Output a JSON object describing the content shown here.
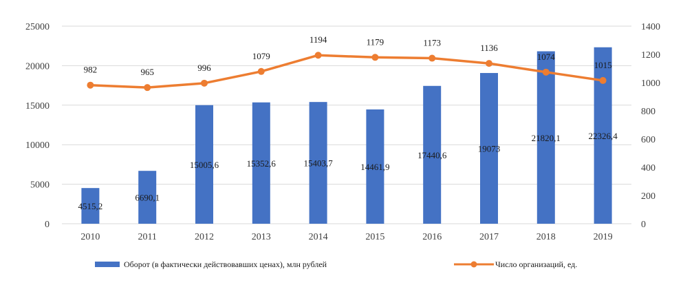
{
  "chart_data": {
    "type": "bar+line",
    "categories": [
      "2010",
      "2011",
      "2012",
      "2013",
      "2014",
      "2015",
      "2016",
      "2017",
      "2018",
      "2019"
    ],
    "series": [
      {
        "name": "Оборот (в фактически действовавших ценах), млн рублей",
        "type": "bar",
        "axis": "left",
        "color": "#4472C4",
        "values": [
          4515.2,
          6690.1,
          15005.6,
          15352.6,
          15403.7,
          14461.9,
          17440.6,
          19073,
          21820.1,
          22326.4
        ],
        "labels": [
          "4515,2",
          "6690,1",
          "15005,6",
          "15352,6",
          "15403,7",
          "14461,9",
          "17440,6",
          "19073",
          "21820,1",
          "22326,4"
        ]
      },
      {
        "name": "Число организаций, ед.",
        "type": "line",
        "axis": "right",
        "color": "#ED7D31",
        "values": [
          982,
          965,
          996,
          1079,
          1194,
          1179,
          1173,
          1136,
          1074,
          1015
        ],
        "labels": [
          "982",
          "965",
          "996",
          "1079",
          "1194",
          "1179",
          "1173",
          "1136",
          "1074",
          "1015"
        ]
      }
    ],
    "y_left": {
      "min": 0,
      "max": 25000,
      "ticks": [
        "0",
        "5000",
        "10000",
        "15000",
        "20000",
        "25000"
      ],
      "tick_values": [
        0,
        5000,
        10000,
        15000,
        20000,
        25000
      ]
    },
    "y_right": {
      "min": 0,
      "max": 1400,
      "ticks": [
        "0",
        "200",
        "400",
        "600",
        "800",
        "1000",
        "1200",
        "1400"
      ],
      "tick_values": [
        0,
        200,
        400,
        600,
        800,
        1000,
        1200,
        1400
      ]
    },
    "grid": true,
    "legend_position": "bottom"
  }
}
